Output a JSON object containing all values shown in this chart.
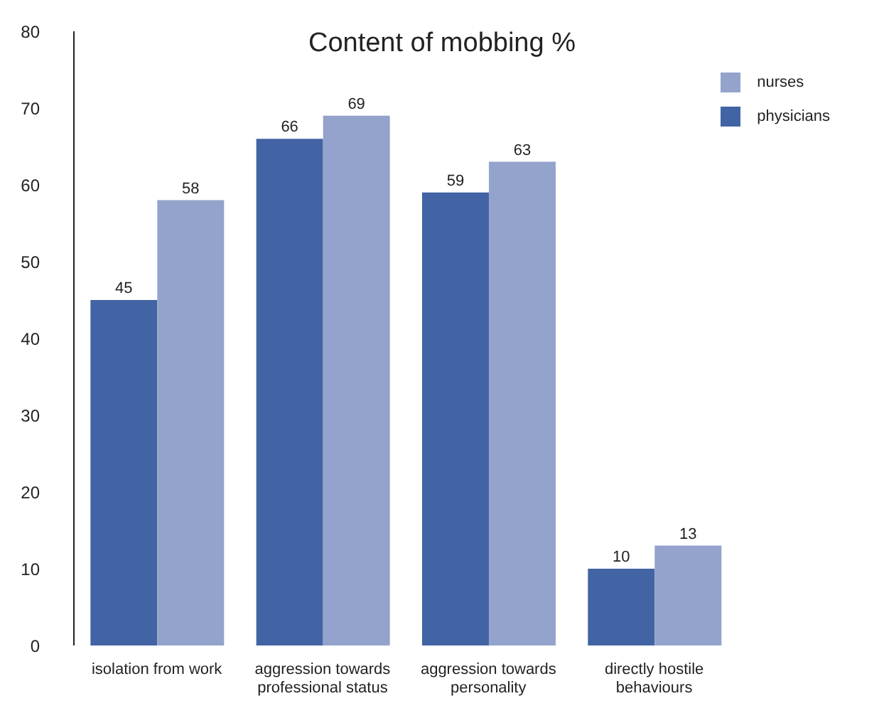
{
  "chart_data": {
    "type": "bar",
    "title": "Content of mobbing %",
    "categories": [
      "isolation from work",
      "aggression towards professional status",
      "aggression towards personality",
      "directly hostile behaviours"
    ],
    "series": [
      {
        "name": "physicians",
        "color": "#4264a4",
        "values": [
          45,
          66,
          59,
          10
        ]
      },
      {
        "name": "nurses",
        "color": "#93a3cc",
        "values": [
          58,
          69,
          63,
          13
        ]
      }
    ],
    "ylim": [
      0,
      80
    ],
    "yticks": [
      0,
      10,
      20,
      30,
      40,
      50,
      60,
      70,
      80
    ],
    "grid": false,
    "legend": "top right",
    "data_labels": true
  }
}
